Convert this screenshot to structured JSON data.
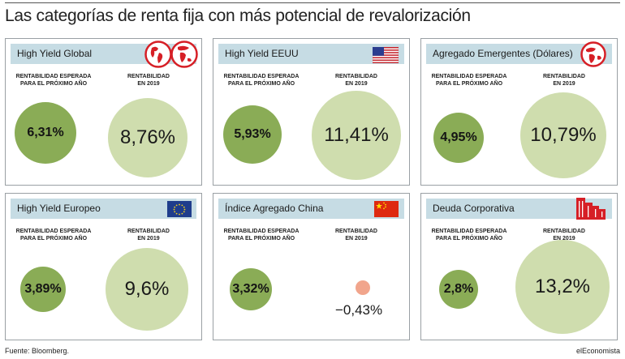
{
  "title": "Las categorías de renta fija con más potencial de revalorización",
  "labels": {
    "expected_line1": "RENTABILIDAD ESPERADA",
    "expected_line2": "PARA EL PRÓXIMO AÑO",
    "return_line1": "RENTABILIDAD",
    "return_line2": "EN 2019"
  },
  "cards": [
    {
      "title": "High Yield Global",
      "icon": "globe-icon",
      "expected": "6,31%",
      "return_2019": "8,76%"
    },
    {
      "title": "High Yield EEUU",
      "icon": "us-flag-icon",
      "expected": "5,93%",
      "return_2019": "11,41%"
    },
    {
      "title": "Agregado Emergentes (Dólares)",
      "icon": "globe-icon",
      "expected": "4,95%",
      "return_2019": "10,79%"
    },
    {
      "title": "High Yield Europeo",
      "icon": "eu-flag-icon",
      "expected": "3,89%",
      "return_2019": "9,6%"
    },
    {
      "title": "Índice Agregado China",
      "icon": "china-flag-icon",
      "expected": "3,32%",
      "return_2019": "−0,43%"
    },
    {
      "title": "Deuda Corporativa",
      "icon": "buildings-icon",
      "expected": "2,8%",
      "return_2019": "13,2%"
    }
  ],
  "colors": {
    "header": "#c6dce4",
    "expected_circle": "#8aac56",
    "return_circle": "#cfddae",
    "negative_circle": "#f1a58c",
    "icon_red": "#d61f26"
  },
  "footer": {
    "source": "Fuente: Bloomberg.",
    "brand": "elEconomista"
  }
}
